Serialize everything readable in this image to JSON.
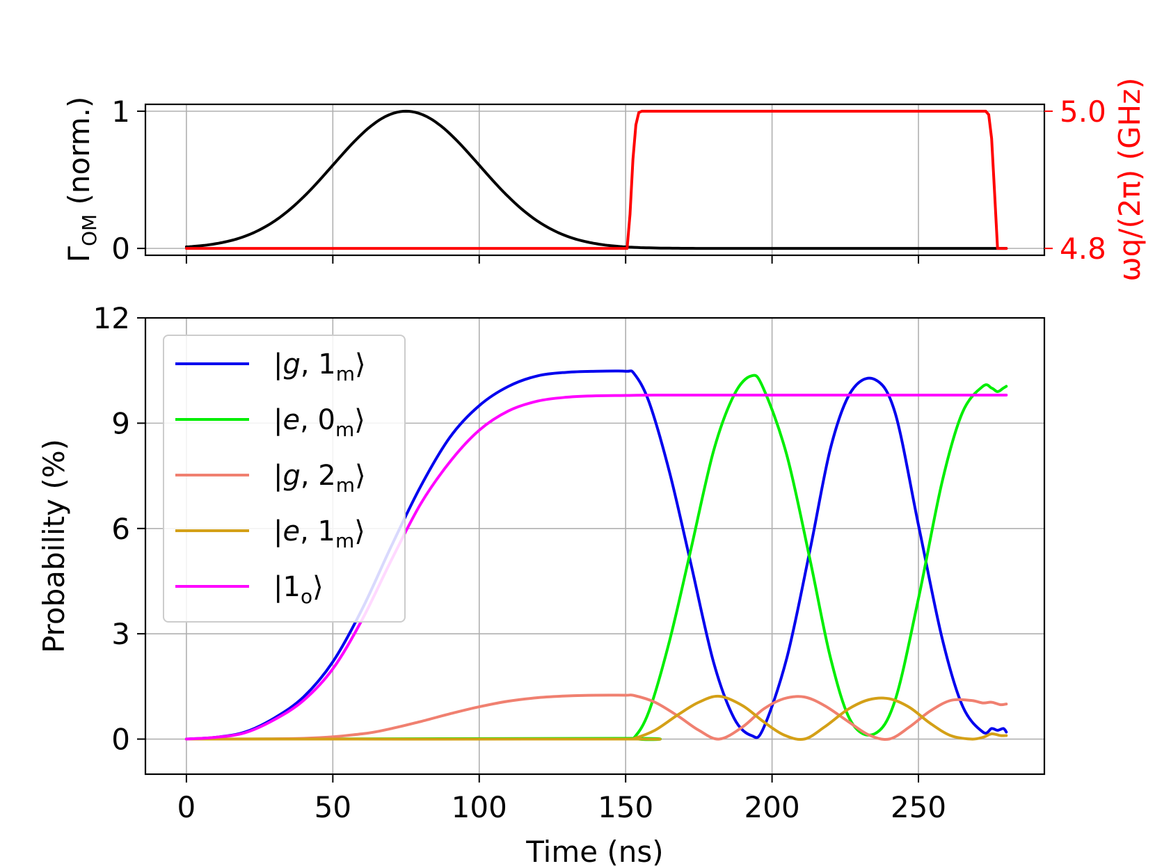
{
  "chart_data": [
    {
      "type": "line",
      "panel": "top",
      "xlabel": "",
      "x_ticks": [
        0,
        50,
        100,
        150,
        200,
        250
      ],
      "xlim": [
        -14,
        293
      ],
      "ylabel": "Γ_OM (norm.)",
      "ylabel_main": "Γ",
      "ylabel_sub": "OM",
      "ylabel_rest": " (norm.)",
      "ylim": [
        -0.05,
        1.05
      ],
      "y_ticks": [
        "0",
        "1"
      ],
      "y2label": "ω_q/(2π) (GHz)",
      "y2label_text": "ωq/(2π) (GHz)",
      "y2lim": [
        4.79,
        5.01
      ],
      "y2_ticks": [
        "4.8",
        "5.0"
      ],
      "grid": true,
      "series": [
        {
          "name": "Γ_OM",
          "axis": "left",
          "color": "#000000",
          "shape": "gaussian",
          "center": 75,
          "sigma": 25,
          "range": [
            0,
            280
          ]
        },
        {
          "name": "ω_q/(2π)",
          "axis": "right",
          "color": "#ff0000",
          "x": [
            0,
            150.5,
            151.5,
            152.5,
            153.5,
            154.5,
            155.5,
            273,
            274,
            275,
            276,
            277,
            280
          ],
          "y": [
            4.8,
            4.8,
            4.85,
            4.93,
            4.98,
            4.998,
            5.0,
            5.0,
            4.995,
            4.96,
            4.88,
            4.8,
            4.8
          ]
        }
      ]
    },
    {
      "type": "line",
      "panel": "bottom",
      "xlabel": "Time (ns)",
      "x_ticks": [
        "0",
        "50",
        "100",
        "150",
        "200",
        "250"
      ],
      "xlim": [
        -14,
        293
      ],
      "ylabel": "Probability (%)",
      "ylim": [
        -1,
        12
      ],
      "y_ticks": [
        "0",
        "3",
        "6",
        "9",
        "12"
      ],
      "grid": true,
      "legend_position": "top-left",
      "series": [
        {
          "name": "|g, 1m⟩",
          "color": "#0000ee",
          "x": [
            0,
            10,
            20,
            30,
            40,
            50,
            60,
            70,
            80,
            90,
            100,
            110,
            120,
            130,
            140,
            150,
            153,
            158,
            165,
            172,
            180,
            187,
            193,
            197,
            205,
            213,
            220,
            227,
            235,
            242,
            250,
            258,
            265,
            272,
            275,
            277,
            279,
            280
          ],
          "y": [
            0,
            0.05,
            0.2,
            0.6,
            1.2,
            2.2,
            3.7,
            5.5,
            7.2,
            8.6,
            9.5,
            10.05,
            10.35,
            10.45,
            10.48,
            10.48,
            10.4,
            9.6,
            7.6,
            5.1,
            2.2,
            0.6,
            0.1,
            0.3,
            2.3,
            5.4,
            8.3,
            9.9,
            10.25,
            9.3,
            6.1,
            2.9,
            0.95,
            0.2,
            0.3,
            0.25,
            0.3,
            0.2
          ]
        },
        {
          "name": "|e, 0m⟩",
          "color": "#00ee00",
          "x": [
            0,
            150,
            153,
            158,
            165,
            172,
            180,
            187,
            193,
            197,
            205,
            213,
            220,
            227,
            235,
            242,
            250,
            258,
            265,
            272,
            275,
            277,
            279,
            280
          ],
          "y": [
            0,
            0.02,
            0.05,
            0.8,
            2.8,
            5.3,
            8.2,
            9.8,
            10.35,
            10.0,
            8.1,
            5.1,
            2.3,
            0.5,
            0.15,
            1.1,
            4.0,
            7.3,
            9.3,
            10.05,
            10.0,
            9.9,
            10.0,
            10.05
          ]
        },
        {
          "name": "|g, 2m⟩",
          "color": "#f08070",
          "x": [
            0,
            40,
            60,
            70,
            80,
            90,
            100,
            110,
            120,
            130,
            140,
            150,
            153,
            160,
            168,
            175,
            182,
            190,
            197,
            204,
            211,
            218,
            226,
            233,
            240,
            247,
            254,
            261,
            268,
            272,
            275,
            278,
            280
          ],
          "y": [
            0,
            0.02,
            0.15,
            0.3,
            0.5,
            0.72,
            0.92,
            1.08,
            1.18,
            1.23,
            1.25,
            1.25,
            1.24,
            1.05,
            0.65,
            0.25,
            0.0,
            0.35,
            0.85,
            1.15,
            1.2,
            0.95,
            0.5,
            0.12,
            0.0,
            0.35,
            0.8,
            1.1,
            1.1,
            1.03,
            1.05,
            0.98,
            1.0
          ]
        },
        {
          "name": "|e, 1m⟩",
          "color": "#d4a017",
          "x": [
            0,
            150,
            153,
            160,
            168,
            175,
            182,
            190,
            197,
            204,
            211,
            218,
            226,
            233,
            240,
            247,
            254,
            261,
            268,
            272,
            275,
            278,
            280
          ],
          "y": [
            0,
            0.0,
            0.02,
            0.25,
            0.7,
            1.05,
            1.22,
            0.95,
            0.5,
            0.12,
            0.0,
            0.35,
            0.85,
            1.12,
            1.15,
            0.9,
            0.45,
            0.1,
            0.0,
            0.05,
            0.15,
            0.1,
            0.1
          ]
        },
        {
          "name": "|1o⟩",
          "color": "#ff00ff",
          "x": [
            0,
            10,
            20,
            30,
            40,
            50,
            60,
            70,
            80,
            90,
            100,
            110,
            120,
            130,
            140,
            150,
            160,
            200,
            240,
            280
          ],
          "y": [
            0,
            0.05,
            0.18,
            0.55,
            1.1,
            2.0,
            3.4,
            5.1,
            6.7,
            7.9,
            8.8,
            9.35,
            9.63,
            9.74,
            9.78,
            9.79,
            9.8,
            9.8,
            9.8,
            9.8
          ]
        }
      ],
      "legend": [
        {
          "name": "|g, 1m⟩",
          "pre": "|",
          "var": "g",
          "mid": ", 1",
          "sub": "m",
          "post": "⟩"
        },
        {
          "name": "|e, 0m⟩",
          "pre": "|",
          "var": "e",
          "mid": ", 0",
          "sub": "m",
          "post": "⟩"
        },
        {
          "name": "|g, 2m⟩",
          "pre": "|",
          "var": "g",
          "mid": ", 2",
          "sub": "m",
          "post": "⟩"
        },
        {
          "name": "|e, 1m⟩",
          "pre": "|",
          "var": "e",
          "mid": ", 1",
          "sub": "m",
          "post": "⟩"
        },
        {
          "name": "|1o⟩",
          "pre": "|1",
          "var": "",
          "mid": "",
          "sub": "o",
          "post": "⟩"
        }
      ]
    }
  ]
}
